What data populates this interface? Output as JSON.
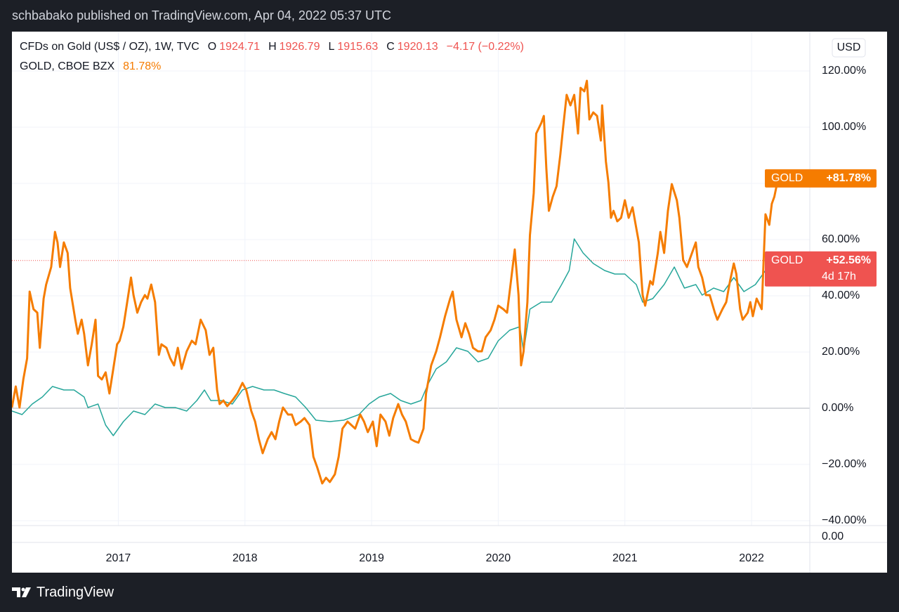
{
  "published": "schbabako published on TradingView.com, Apr 04, 2022 05:37 UTC",
  "footer": "TradingView",
  "unit_button": "USD",
  "sub_pane_label": "0.00",
  "legend": {
    "ohlc": [
      {
        "label": "O",
        "value": 1924.71
      },
      {
        "label": "H",
        "value": 1926.79
      },
      {
        "label": "L",
        "value": 1915.63
      },
      {
        "label": "C",
        "value": 1920.13
      }
    ],
    "change": "−4.17 (−0.22%)",
    "gold_value": "81.78%"
  },
  "price_labels": [
    {
      "name": "GOLD",
      "label": "+81.78%",
      "color": "#f57c00"
    },
    {
      "name": "GOLD",
      "label": "+52.56%",
      "countdown": "4d 17h",
      "color": "#ef5350"
    }
  ],
  "chart_data": {
    "type": "line",
    "xlim": [
      2016.16,
      2022.46
    ],
    "ylim": [
      -41.75,
      134
    ],
    "xticks": [
      2017,
      2018,
      2019,
      2020,
      2021,
      2022
    ],
    "yticks": [
      {
        "value": -40,
        "label": "−40.00%"
      },
      {
        "value": -20,
        "label": "−20.00%"
      },
      {
        "value": 0,
        "label": "0.00%"
      },
      {
        "value": 20,
        "label": "20.00%"
      },
      {
        "value": 40,
        "label": "40.00%"
      },
      {
        "value": 60,
        "label": "60.00%"
      },
      {
        "value": 80,
        "label": "80.00%"
      },
      {
        "value": 100,
        "label": "100.00%"
      },
      {
        "value": 120,
        "label": "120.00%"
      }
    ],
    "grid": true,
    "series": [
      {
        "name": "CFDs on Gold (US$ / OZ), 1W, TVC",
        "color": "#26a69a",
        "x": [
          2016.16,
          2016.24,
          2016.32,
          2016.4,
          2016.48,
          2016.57,
          2016.65,
          2016.73,
          2016.76,
          2016.84,
          2016.9,
          2016.96,
          2017.04,
          2017.12,
          2017.21,
          2017.29,
          2017.37,
          2017.45,
          2017.54,
          2017.62,
          2017.68,
          2017.73,
          2017.81,
          2017.9,
          2017.98,
          2018.06,
          2018.15,
          2018.23,
          2018.31,
          2018.4,
          2018.48,
          2018.56,
          2018.67,
          2018.78,
          2018.9,
          2018.98,
          2019.06,
          2019.15,
          2019.23,
          2019.31,
          2019.39,
          2019.45,
          2019.51,
          2019.59,
          2019.67,
          2019.76,
          2019.84,
          2019.92,
          2020.0,
          2020.09,
          2020.17,
          2020.2,
          2020.25,
          2020.34,
          2020.42,
          2020.5,
          2020.56,
          2020.6,
          2020.67,
          2020.75,
          2020.84,
          2020.92,
          2021.0,
          2021.09,
          2021.14,
          2021.22,
          2021.31,
          2021.39,
          2021.47,
          2021.56,
          2021.61,
          2021.7,
          2021.78,
          2021.86,
          2021.94,
          2022.03,
          2022.11,
          2022.17,
          2022.21
        ],
        "values": [
          -1,
          -2.25,
          1.5,
          4,
          7.75,
          6.5,
          6.5,
          4,
          0.25,
          1.5,
          -6,
          -9.75,
          -4.75,
          -1,
          -2.25,
          1.5,
          0.25,
          0.25,
          -1,
          2.75,
          6.5,
          2.75,
          2.75,
          1.5,
          6.5,
          7.75,
          6.5,
          6.5,
          5.25,
          4,
          0.25,
          -4.25,
          -4.75,
          -4.25,
          -2.25,
          1.5,
          4,
          5.25,
          2.75,
          1.5,
          2.75,
          9,
          14,
          16.5,
          21.5,
          20.25,
          16.5,
          17.75,
          24,
          27.75,
          29,
          20.25,
          35.25,
          37.75,
          37.75,
          44,
          49,
          60.25,
          55.25,
          51.5,
          49,
          47.75,
          47.75,
          44,
          37.75,
          39,
          44,
          50.25,
          42.75,
          44,
          40.25,
          42.75,
          41.5,
          46.5,
          41.5,
          44,
          49,
          55.25,
          52.56
        ]
      },
      {
        "name": "GOLD, CBOE BZX",
        "color": "#f57c00",
        "x": [
          2016.16,
          2016.19,
          2016.22,
          2016.25,
          2016.28,
          2016.3,
          2016.33,
          2016.36,
          2016.38,
          2016.41,
          2016.43,
          2016.47,
          2016.5,
          2016.52,
          2016.54,
          2016.57,
          2016.6,
          2016.62,
          2016.66,
          2016.68,
          2016.71,
          2016.73,
          2016.76,
          2016.79,
          2016.82,
          2016.84,
          2016.87,
          2016.9,
          2016.93,
          2016.96,
          2016.99,
          2017.01,
          2017.04,
          2017.07,
          2017.1,
          2017.12,
          2017.15,
          2017.18,
          2017.21,
          2017.23,
          2017.26,
          2017.29,
          2017.32,
          2017.34,
          2017.38,
          2017.41,
          2017.44,
          2017.47,
          2017.5,
          2017.54,
          2017.58,
          2017.61,
          2017.65,
          2017.69,
          2017.72,
          2017.75,
          2017.78,
          2017.8,
          2017.83,
          2017.86,
          2017.9,
          2017.94,
          2017.98,
          2018.01,
          2018.05,
          2018.08,
          2018.11,
          2018.14,
          2018.18,
          2018.21,
          2018.24,
          2018.27,
          2018.3,
          2018.34,
          2018.37,
          2018.4,
          2018.44,
          2018.47,
          2018.51,
          2018.54,
          2018.57,
          2018.61,
          2018.64,
          2018.67,
          2018.71,
          2018.74,
          2018.77,
          2018.81,
          2018.84,
          2018.87,
          2018.91,
          2018.94,
          2018.97,
          2019.01,
          2019.04,
          2019.07,
          2019.11,
          2019.14,
          2019.17,
          2019.21,
          2019.24,
          2019.27,
          2019.31,
          2019.34,
          2019.37,
          2019.41,
          2019.43,
          2019.47,
          2019.51,
          2019.54,
          2019.58,
          2019.62,
          2019.64,
          2019.67,
          2019.71,
          2019.74,
          2019.77,
          2019.8,
          2019.84,
          2019.87,
          2019.9,
          2019.94,
          2019.97,
          2020.0,
          2020.04,
          2020.07,
          2020.1,
          2020.13,
          2020.16,
          2020.18,
          2020.2,
          2020.23,
          2020.25,
          2020.28,
          2020.3,
          2020.34,
          2020.36,
          2020.38,
          2020.4,
          2020.43,
          2020.46,
          2020.49,
          2020.51,
          2020.54,
          2020.57,
          2020.6,
          2020.63,
          2020.65,
          2020.68,
          2020.7,
          2020.72,
          2020.75,
          2020.78,
          2020.81,
          2020.82,
          2020.85,
          2020.87,
          2020.89,
          2020.91,
          2020.94,
          2020.97,
          2021.0,
          2021.03,
          2021.06,
          2021.09,
          2021.11,
          2021.14,
          2021.16,
          2021.2,
          2021.22,
          2021.26,
          2021.28,
          2021.31,
          2021.34,
          2021.37,
          2021.41,
          2021.43,
          2021.46,
          2021.49,
          2021.52,
          2021.56,
          2021.58,
          2021.61,
          2021.64,
          2021.67,
          2021.71,
          2021.73,
          2021.77,
          2021.8,
          2021.83,
          2021.86,
          2021.88,
          2021.91,
          2021.93,
          2021.97,
          2021.99,
          2022.01,
          2022.04,
          2022.08,
          2022.11,
          2022.14,
          2022.16,
          2022.18,
          2022.21
        ],
        "values": [
          0.25,
          7.75,
          0.25,
          10.25,
          17.75,
          41.5,
          35.25,
          34,
          21.5,
          39,
          44,
          50.25,
          62.75,
          59,
          50.25,
          59,
          55.25,
          42.75,
          31.5,
          26.5,
          31.5,
          26.5,
          15.25,
          22.75,
          31.5,
          11.5,
          10.25,
          12.75,
          5.25,
          14,
          22.75,
          24,
          29,
          37.75,
          46.5,
          40.25,
          34,
          37.75,
          40.25,
          39,
          44,
          37.75,
          19,
          22.75,
          21.5,
          17.75,
          15.25,
          21.5,
          14,
          20.25,
          24,
          22.75,
          31.5,
          27.75,
          19,
          21.5,
          6.5,
          1.5,
          2.75,
          0.75,
          2.75,
          5.25,
          9,
          6.5,
          -1,
          -4.75,
          -11,
          -16,
          -11,
          -8.5,
          -11,
          -4.75,
          0.25,
          -2.25,
          -2.25,
          -6,
          -4.75,
          -3.5,
          -6,
          -17.25,
          -21,
          -26.75,
          -24.75,
          -26.25,
          -23.5,
          -17.25,
          -7.25,
          -4.75,
          -6,
          -7.25,
          -2.25,
          -4.75,
          -8.5,
          -4.75,
          -13.5,
          -2.25,
          -4.75,
          -9.75,
          -3.5,
          1.5,
          -2.25,
          -4.75,
          -11,
          -11.75,
          -12.25,
          -7.25,
          5.25,
          15.25,
          20.25,
          25.25,
          32.75,
          39,
          41.5,
          31.5,
          25.25,
          30.25,
          26.5,
          21.5,
          20.25,
          20.25,
          25.25,
          27.75,
          31.5,
          36.5,
          35.25,
          34,
          45.25,
          56.5,
          40.25,
          15.25,
          20.25,
          37.75,
          61.5,
          76.5,
          97.75,
          101.5,
          104,
          85.25,
          70.25,
          75.25,
          79,
          90.25,
          99,
          111.5,
          107.75,
          111.5,
          97.75,
          114,
          112.75,
          116.5,
          102.75,
          105.25,
          104,
          95.25,
          107.75,
          87.75,
          80.25,
          67.75,
          70.25,
          66.5,
          67.75,
          74,
          67.75,
          71.5,
          64,
          59,
          40.25,
          36.5,
          45.25,
          44,
          55.25,
          62.75,
          55.25,
          70.25,
          79.75,
          74,
          67.75,
          52.75,
          50.25,
          54,
          59,
          50.25,
          46.5,
          40.25,
          40.25,
          34,
          31.5,
          35.25,
          37.75,
          45.25,
          51.5,
          47.75,
          35.25,
          31.5,
          34,
          37.75,
          32.75,
          39,
          35.25,
          69,
          65.25,
          72.75,
          75.25,
          81.78
        ]
      }
    ]
  }
}
